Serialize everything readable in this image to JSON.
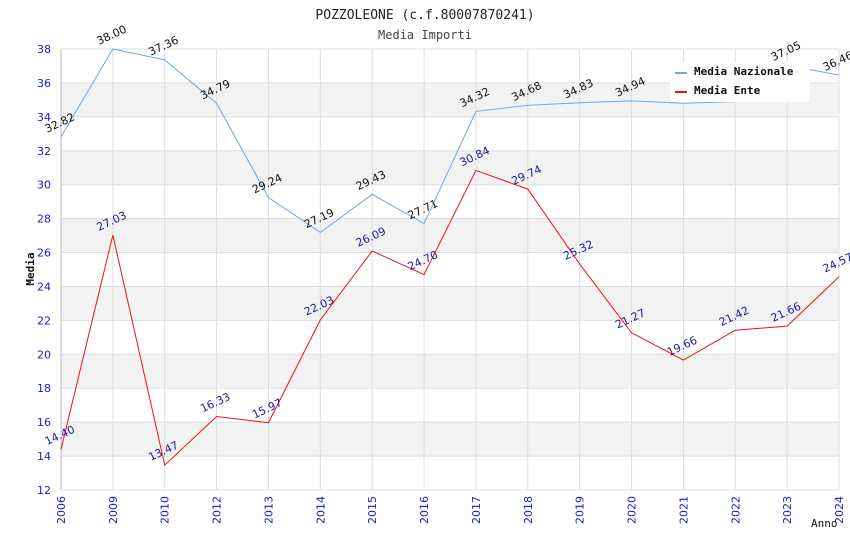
{
  "chart_data": {
    "type": "line",
    "title": "POZZOLEONE (c.f.80007870241)",
    "subtitle": "Media Importi",
    "xlabel": "Anno",
    "ylabel": "Media",
    "categories": [
      "2006",
      "2009",
      "2010",
      "2012",
      "2013",
      "2014",
      "2015",
      "2016",
      "2017",
      "2018",
      "2019",
      "2020",
      "2021",
      "2022",
      "2023",
      "2024"
    ],
    "ylim": [
      12,
      38
    ],
    "yticks": [
      12,
      14,
      16,
      18,
      20,
      22,
      24,
      26,
      28,
      30,
      32,
      34,
      36,
      38
    ],
    "grid": true,
    "legend_position": "top-right",
    "series": [
      {
        "name": "Media Nazionale",
        "color": "#6aa8e8",
        "label_color": "#111111",
        "values": [
          32.82,
          38.0,
          37.36,
          34.79,
          29.24,
          27.19,
          29.43,
          27.71,
          34.32,
          34.68,
          34.83,
          34.94,
          34.8,
          34.9,
          37.05,
          36.46
        ],
        "labels": [
          "32.82",
          "38.00",
          "37.36",
          "34.79",
          "29.24",
          "27.19",
          "29.43",
          "27.71",
          "34.32",
          "34.68",
          "34.83",
          "34.94",
          null,
          null,
          "37.05",
          "36.46"
        ]
      },
      {
        "name": "Media Ente",
        "color": "#ee1111",
        "label_color": "#1a1a99",
        "values": [
          14.4,
          27.03,
          13.47,
          16.33,
          15.97,
          22.03,
          26.09,
          24.7,
          30.84,
          29.74,
          25.32,
          21.27,
          19.66,
          21.42,
          21.66,
          24.57
        ],
        "labels": [
          "14.40",
          "27.03",
          "13.47",
          "16.33",
          "15.97",
          "22.03",
          "26.09",
          "24.70",
          "30.84",
          "29.74",
          "25.32",
          "21.27",
          "19.66",
          "21.42",
          "21.66",
          "24.57"
        ]
      }
    ]
  }
}
